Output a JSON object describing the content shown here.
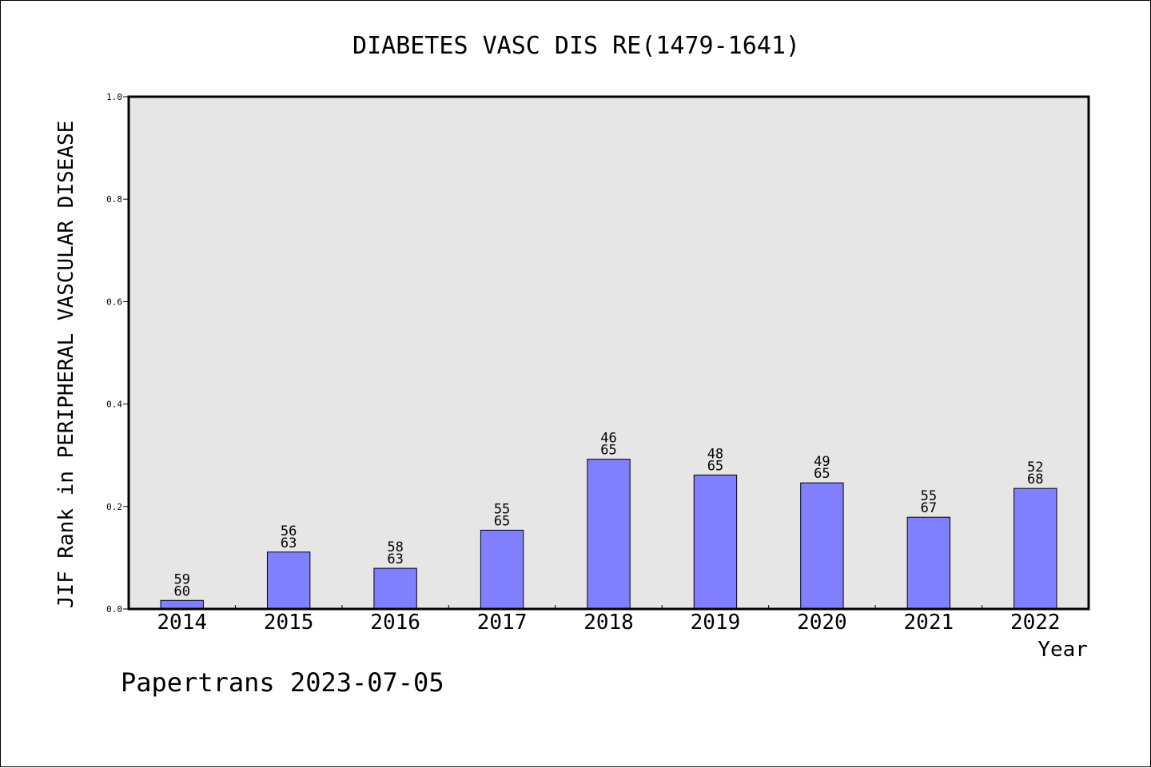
{
  "chart_data": {
    "type": "bar",
    "title": "DIABETES VASC DIS RE(1479-1641)",
    "xlabel": "Year",
    "ylabel": "JIF Rank in PERIPHERAL VASCULAR DISEASE",
    "ylim": [
      0,
      1.0
    ],
    "yticks": [
      "0.0",
      "0.2",
      "0.4",
      "0.6",
      "0.8",
      "1.0"
    ],
    "categories": [
      "2014",
      "2015",
      "2016",
      "2017",
      "2018",
      "2019",
      "2020",
      "2021",
      "2022"
    ],
    "values": [
      0.0167,
      0.1111,
      0.0794,
      0.1538,
      0.2923,
      0.2615,
      0.2462,
      0.1791,
      0.2353
    ],
    "rank": [
      "59",
      "56",
      "58",
      "55",
      "46",
      "48",
      "49",
      "55",
      "52"
    ],
    "total": [
      "60",
      "63",
      "63",
      "65",
      "65",
      "65",
      "65",
      "67",
      "68"
    ],
    "bar_color": "#8080ff",
    "plot_background": "#e6e6e6",
    "grid": false
  },
  "footer": {
    "text": "Papertrans 2023-07-05"
  }
}
